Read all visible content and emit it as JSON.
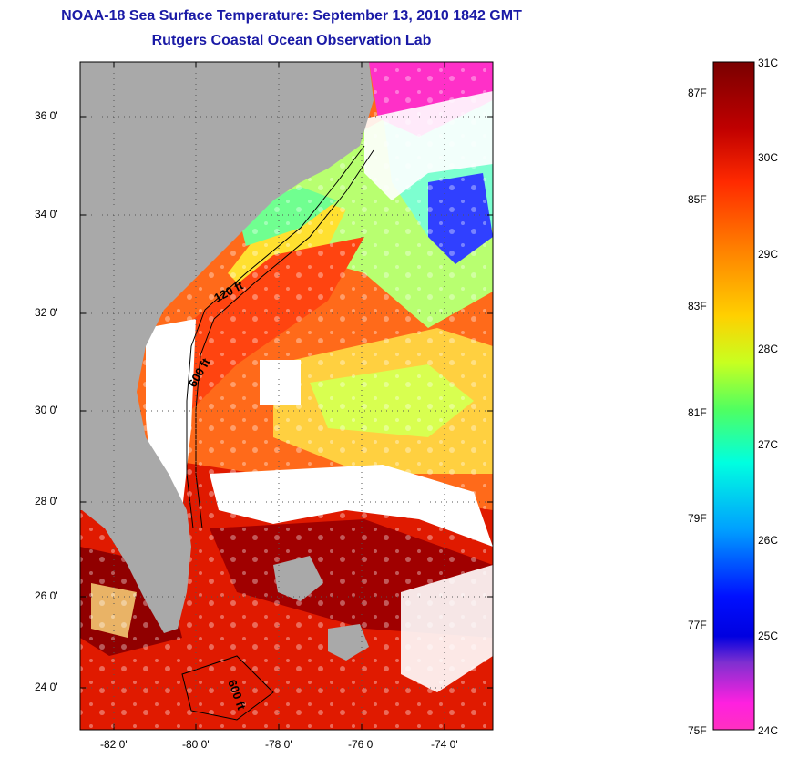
{
  "title": {
    "line1": "NOAA-18 Sea Surface Temperature:  September 13, 2010 1842 GMT",
    "line2": "Rutgers Coastal Ocean Observation Lab"
  },
  "map": {
    "lon_range": [
      -83,
      -73
    ],
    "lat_range": [
      23,
      37
    ],
    "y_ticks": [
      "36 0'",
      "34 0'",
      "32 0'",
      "30 0'",
      "28 0'",
      "26 0'",
      "24 0'"
    ],
    "x_ticks": [
      "-82 0'",
      "-80 0'",
      "-78 0'",
      "-76 0'",
      "-74 0'"
    ],
    "contour_labels": [
      "120 ft",
      "600 ft",
      "600 ft"
    ],
    "colors": {
      "land": "#a9a9a9",
      "cloud": "#ffffff",
      "title": "#1a1aa6"
    }
  },
  "colorbar": {
    "celsius_labels": [
      "31C",
      "30C",
      "29C",
      "28C",
      "27C",
      "26C",
      "25C",
      "24C"
    ],
    "fahrenheit_labels": [
      "87F",
      "85F",
      "83F",
      "81F",
      "79F",
      "77F",
      "75F"
    ],
    "range_c": [
      24,
      31
    ]
  }
}
